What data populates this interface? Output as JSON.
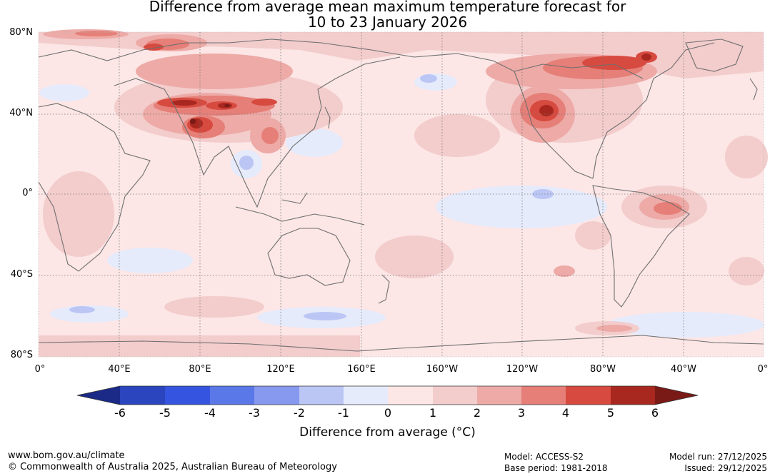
{
  "title": {
    "line1": "Difference from average mean maximum temperature forecast for",
    "line2": "10 to 23 January 2026"
  },
  "map": {
    "lat_labels": [
      "80°N",
      "40°N",
      "0°",
      "40°S",
      "80°S"
    ],
    "lon_labels": [
      "0°",
      "40°E",
      "80°E",
      "120°E",
      "160°E",
      "160°W",
      "120°W",
      "80°W",
      "40°W",
      "0°"
    ]
  },
  "colorbar": {
    "title": "Difference from average (°C)",
    "ticks": [
      "-6",
      "-5",
      "-4",
      "-3",
      "-2",
      "-1",
      "0",
      "1",
      "2",
      "3",
      "4",
      "5",
      "6"
    ],
    "colors": [
      "#1a2a86",
      "#2a45bd",
      "#3555e0",
      "#5a78e8",
      "#8799ee",
      "#bcc6f5",
      "#e6ebfb",
      "#fce6e6",
      "#f3cccc",
      "#edaaa6",
      "#e57f78",
      "#d74a3f",
      "#a8281f",
      "#7a1a16"
    ]
  },
  "footer": {
    "website": "www.bom.gov.au/climate",
    "copyright": "© Commonwealth of Australia 2025, Australian Bureau of Meteorology",
    "model": "Model: ACCESS-S2",
    "base_period": "Base period: 1981-2018",
    "model_run": "Model run: 27/12/2025",
    "issued": "Issued: 29/12/2025"
  }
}
